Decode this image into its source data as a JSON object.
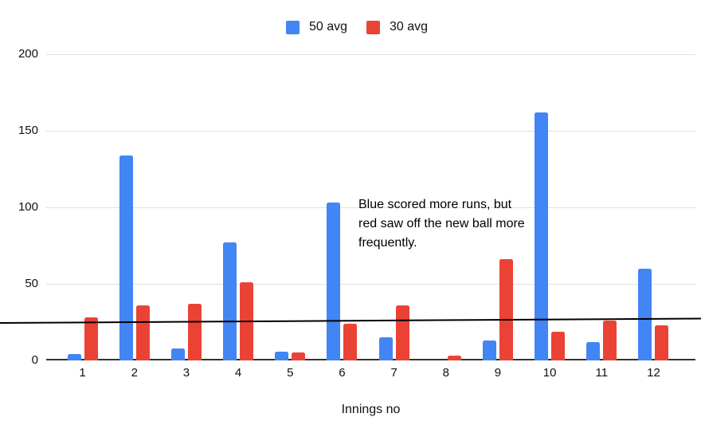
{
  "chart_data": {
    "type": "bar",
    "title": "",
    "categories": [
      "1",
      "2",
      "3",
      "4",
      "5",
      "6",
      "7",
      "8",
      "9",
      "10",
      "11",
      "12"
    ],
    "series": [
      {
        "name": "50 avg",
        "color": "#4285F4",
        "values": [
          4,
          134,
          8,
          77,
          6,
          103,
          15,
          0,
          13,
          162,
          12,
          60
        ]
      },
      {
        "name": "30 avg",
        "color": "#EA4335",
        "values": [
          28,
          36,
          37,
          51,
          5,
          24,
          36,
          3,
          66,
          19,
          26,
          23
        ]
      }
    ],
    "xlabel": "Innings no",
    "ylabel": "",
    "ylim": [
      0,
      200
    ],
    "yticks": [
      0,
      50,
      100,
      150,
      200
    ],
    "grid": true,
    "legend_position": "top",
    "annotation": {
      "text": "Blue scored more runs, but red saw off the new ball more frequently.",
      "lines": [
        "Blue scored more runs, but",
        "red saw off the new ball more",
        "frequently."
      ],
      "reference_line_y": 25
    },
    "colors": {
      "grid": "#e0e0e0",
      "axis": "#333333",
      "label": "#111111",
      "annotation_line": "#000000"
    }
  }
}
